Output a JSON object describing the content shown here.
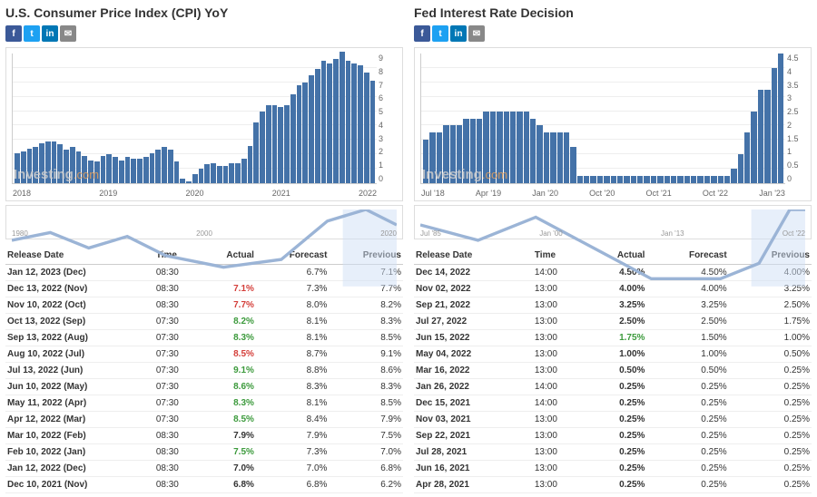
{
  "share_buttons": [
    {
      "name": "facebook-icon",
      "glyph": "f",
      "color": "#3b5998"
    },
    {
      "name": "twitter-icon",
      "glyph": "t",
      "color": "#1da1f2"
    },
    {
      "name": "linkedin-icon",
      "glyph": "in",
      "color": "#0077b5"
    },
    {
      "name": "mail-icon",
      "glyph": "✉",
      "color": "#888888"
    }
  ],
  "watermark": {
    "text": "Investing",
    "suffix": ".com"
  },
  "left": {
    "title": "U.S. Consumer Price Index (CPI) YoY",
    "chart": {
      "type": "bar",
      "bar_color": "#4472a8",
      "grid_color": "#eeeeee",
      "ylim": [
        0,
        9
      ],
      "ytick_step": 1,
      "x_labels": [
        "2018",
        "2019",
        "2020",
        "2021",
        "2022"
      ],
      "values": [
        2.1,
        2.2,
        2.4,
        2.5,
        2.8,
        2.9,
        2.9,
        2.7,
        2.3,
        2.5,
        2.2,
        1.9,
        1.6,
        1.5,
        1.9,
        2.0,
        1.8,
        1.6,
        1.8,
        1.7,
        1.7,
        1.8,
        2.1,
        2.3,
        2.5,
        2.3,
        1.5,
        0.3,
        0.1,
        0.6,
        1.0,
        1.3,
        1.4,
        1.2,
        1.2,
        1.4,
        1.4,
        1.7,
        2.6,
        4.2,
        5.0,
        5.4,
        5.4,
        5.3,
        5.4,
        6.2,
        6.8,
        7.0,
        7.5,
        7.9,
        8.5,
        8.3,
        8.6,
        9.1,
        8.5,
        8.3,
        8.2,
        7.7,
        7.1
      ]
    },
    "mini": {
      "x_labels": [
        "1980",
        "2000",
        "2020"
      ]
    },
    "table": {
      "columns": [
        "Release Date",
        "Time",
        "Actual",
        "Forecast",
        "Previous"
      ],
      "rows": [
        {
          "date": "Jan 12, 2023 (Dec)",
          "time": "08:30",
          "actual": "",
          "actual_color": "",
          "forecast": "6.7%",
          "prev": "7.1%"
        },
        {
          "date": "Dec 13, 2022 (Nov)",
          "time": "08:30",
          "actual": "7.1%",
          "actual_color": "#d43f3a",
          "forecast": "7.3%",
          "prev": "7.7%"
        },
        {
          "date": "Nov 10, 2022 (Oct)",
          "time": "08:30",
          "actual": "7.7%",
          "actual_color": "#d43f3a",
          "forecast": "8.0%",
          "prev": "8.2%"
        },
        {
          "date": "Oct 13, 2022 (Sep)",
          "time": "07:30",
          "actual": "8.2%",
          "actual_color": "#3c9a3c",
          "forecast": "8.1%",
          "prev": "8.3%"
        },
        {
          "date": "Sep 13, 2022 (Aug)",
          "time": "07:30",
          "actual": "8.3%",
          "actual_color": "#3c9a3c",
          "forecast": "8.1%",
          "prev": "8.5%"
        },
        {
          "date": "Aug 10, 2022 (Jul)",
          "time": "07:30",
          "actual": "8.5%",
          "actual_color": "#d43f3a",
          "forecast": "8.7%",
          "prev": "9.1%"
        },
        {
          "date": "Jul 13, 2022 (Jun)",
          "time": "07:30",
          "actual": "9.1%",
          "actual_color": "#3c9a3c",
          "forecast": "8.8%",
          "prev": "8.6%"
        },
        {
          "date": "Jun 10, 2022 (May)",
          "time": "07:30",
          "actual": "8.6%",
          "actual_color": "#3c9a3c",
          "forecast": "8.3%",
          "prev": "8.3%"
        },
        {
          "date": "May 11, 2022 (Apr)",
          "time": "07:30",
          "actual": "8.3%",
          "actual_color": "#3c9a3c",
          "forecast": "8.1%",
          "prev": "8.5%"
        },
        {
          "date": "Apr 12, 2022 (Mar)",
          "time": "07:30",
          "actual": "8.5%",
          "actual_color": "#3c9a3c",
          "forecast": "8.4%",
          "prev": "7.9%"
        },
        {
          "date": "Mar 10, 2022 (Feb)",
          "time": "08:30",
          "actual": "7.9%",
          "actual_color": "",
          "forecast": "7.9%",
          "prev": "7.5%"
        },
        {
          "date": "Feb 10, 2022 (Jan)",
          "time": "08:30",
          "actual": "7.5%",
          "actual_color": "#3c9a3c",
          "forecast": "7.3%",
          "prev": "7.0%"
        },
        {
          "date": "Jan 12, 2022 (Dec)",
          "time": "08:30",
          "actual": "7.0%",
          "actual_color": "",
          "forecast": "7.0%",
          "prev": "6.8%"
        },
        {
          "date": "Dec 10, 2021 (Nov)",
          "time": "08:30",
          "actual": "6.8%",
          "actual_color": "",
          "forecast": "6.8%",
          "prev": "6.2%"
        }
      ]
    }
  },
  "right": {
    "title": "Fed Interest Rate Decision",
    "chart": {
      "type": "bar",
      "bar_color": "#4472a8",
      "grid_color": "#eeeeee",
      "ylim": [
        0,
        4.5
      ],
      "ytick_step": 0.5,
      "x_labels": [
        "Jul '18",
        "Apr '19",
        "Jan '20",
        "Oct '20",
        "Oct '21",
        "Oct '22",
        "Jan '23"
      ],
      "values": [
        1.5,
        1.75,
        1.75,
        2.0,
        2.0,
        2.0,
        2.25,
        2.25,
        2.25,
        2.5,
        2.5,
        2.5,
        2.5,
        2.5,
        2.5,
        2.5,
        2.25,
        2.0,
        1.75,
        1.75,
        1.75,
        1.75,
        1.25,
        0.25,
        0.25,
        0.25,
        0.25,
        0.25,
        0.25,
        0.25,
        0.25,
        0.25,
        0.25,
        0.25,
        0.25,
        0.25,
        0.25,
        0.25,
        0.25,
        0.25,
        0.25,
        0.25,
        0.25,
        0.25,
        0.25,
        0.25,
        0.5,
        1.0,
        1.75,
        2.5,
        3.25,
        3.25,
        4.0,
        4.5
      ]
    },
    "mini": {
      "x_labels": [
        "Jul '85",
        "Jan '00",
        "Jan '13",
        "Oct '22"
      ]
    },
    "table": {
      "columns": [
        "Release Date",
        "Time",
        "Actual",
        "Forecast",
        "Previous"
      ],
      "rows": [
        {
          "date": "Dec 14, 2022",
          "time": "14:00",
          "actual": "4.50%",
          "actual_color": "",
          "forecast": "4.50%",
          "prev": "4.00%"
        },
        {
          "date": "Nov 02, 2022",
          "time": "13:00",
          "actual": "4.00%",
          "actual_color": "",
          "forecast": "4.00%",
          "prev": "3.25%"
        },
        {
          "date": "Sep 21, 2022",
          "time": "13:00",
          "actual": "3.25%",
          "actual_color": "",
          "forecast": "3.25%",
          "prev": "2.50%"
        },
        {
          "date": "Jul 27, 2022",
          "time": "13:00",
          "actual": "2.50%",
          "actual_color": "",
          "forecast": "2.50%",
          "prev": "1.75%"
        },
        {
          "date": "Jun 15, 2022",
          "time": "13:00",
          "actual": "1.75%",
          "actual_color": "#3c9a3c",
          "forecast": "1.50%",
          "prev": "1.00%"
        },
        {
          "date": "May 04, 2022",
          "time": "13:00",
          "actual": "1.00%",
          "actual_color": "",
          "forecast": "1.00%",
          "prev": "0.50%"
        },
        {
          "date": "Mar 16, 2022",
          "time": "13:00",
          "actual": "0.50%",
          "actual_color": "",
          "forecast": "0.50%",
          "prev": "0.25%"
        },
        {
          "date": "Jan 26, 2022",
          "time": "14:00",
          "actual": "0.25%",
          "actual_color": "",
          "forecast": "0.25%",
          "prev": "0.25%"
        },
        {
          "date": "Dec 15, 2021",
          "time": "14:00",
          "actual": "0.25%",
          "actual_color": "",
          "forecast": "0.25%",
          "prev": "0.25%"
        },
        {
          "date": "Nov 03, 2021",
          "time": "13:00",
          "actual": "0.25%",
          "actual_color": "",
          "forecast": "0.25%",
          "prev": "0.25%"
        },
        {
          "date": "Sep 22, 2021",
          "time": "13:00",
          "actual": "0.25%",
          "actual_color": "",
          "forecast": "0.25%",
          "prev": "0.25%"
        },
        {
          "date": "Jul 28, 2021",
          "time": "13:00",
          "actual": "0.25%",
          "actual_color": "",
          "forecast": "0.25%",
          "prev": "0.25%"
        },
        {
          "date": "Jun 16, 2021",
          "time": "13:00",
          "actual": "0.25%",
          "actual_color": "",
          "forecast": "0.25%",
          "prev": "0.25%"
        },
        {
          "date": "Apr 28, 2021",
          "time": "13:00",
          "actual": "0.25%",
          "actual_color": "",
          "forecast": "0.25%",
          "prev": "0.25%"
        }
      ]
    }
  }
}
